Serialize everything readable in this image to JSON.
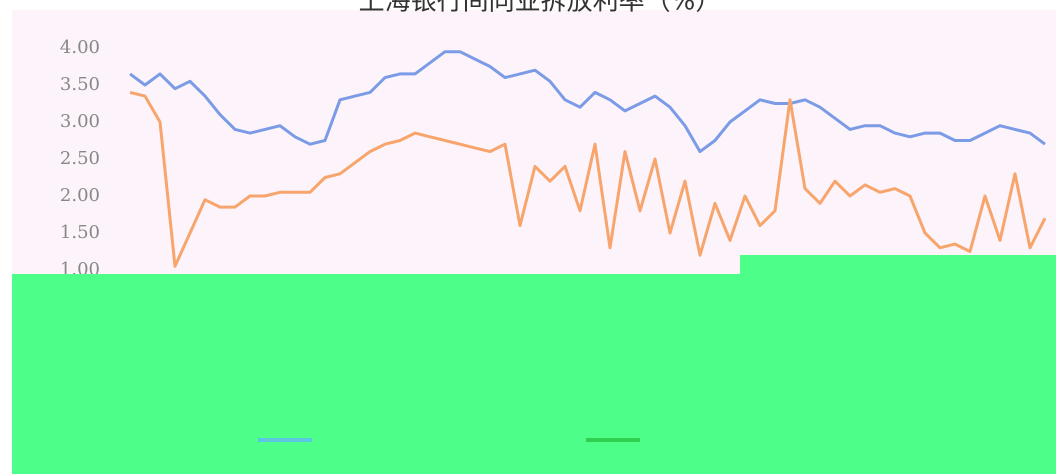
{
  "chart_data": {
    "type": "line",
    "title": "上海银行间同业拆放利率（%）",
    "ylim": [
      1.0,
      4.0
    ],
    "yticks": [
      {
        "value": 1.0,
        "label": "1.00"
      },
      {
        "value": 1.5,
        "label": "1.50"
      },
      {
        "value": 2.0,
        "label": "2.00"
      },
      {
        "value": 2.5,
        "label": "2.50"
      },
      {
        "value": 3.0,
        "label": "3.00"
      },
      {
        "value": 3.5,
        "label": "3.50"
      },
      {
        "value": 4.0,
        "label": "4.00"
      }
    ],
    "series": [
      {
        "color": "#7b9be6",
        "values": [
          3.65,
          3.5,
          3.65,
          3.45,
          3.55,
          3.35,
          3.1,
          2.9,
          2.85,
          2.9,
          2.95,
          2.8,
          2.7,
          2.75,
          3.3,
          3.35,
          3.4,
          3.6,
          3.65,
          3.65,
          3.8,
          3.95,
          3.95,
          3.85,
          3.75,
          3.6,
          3.65,
          3.7,
          3.55,
          3.3,
          3.2,
          3.4,
          3.3,
          3.15,
          3.25,
          3.35,
          3.2,
          2.95,
          2.6,
          2.75,
          3.0,
          3.15,
          3.3,
          3.25,
          3.25,
          3.3,
          3.2,
          3.05,
          2.9,
          2.95,
          2.95,
          2.85,
          2.8,
          2.85,
          2.85,
          2.75,
          2.75,
          2.85,
          2.95,
          2.9,
          2.85,
          2.7
        ]
      },
      {
        "color": "#f7a56c",
        "values": [
          3.4,
          3.35,
          3.0,
          1.05,
          1.5,
          1.95,
          1.85,
          1.85,
          2.0,
          2.0,
          2.05,
          2.05,
          2.05,
          2.25,
          2.3,
          2.45,
          2.6,
          2.7,
          2.75,
          2.85,
          2.8,
          2.75,
          2.7,
          2.65,
          2.6,
          2.7,
          1.6,
          2.4,
          2.2,
          2.4,
          1.8,
          2.7,
          1.3,
          2.6,
          1.8,
          2.5,
          1.5,
          2.2,
          1.2,
          1.9,
          1.4,
          2.0,
          1.6,
          1.8,
          3.3,
          2.1,
          1.9,
          2.2,
          2.0,
          2.15,
          2.05,
          2.1,
          2.0,
          1.5,
          1.3,
          1.35,
          1.25,
          2.0,
          1.4,
          2.3,
          1.3,
          1.7
        ]
      }
    ]
  }
}
